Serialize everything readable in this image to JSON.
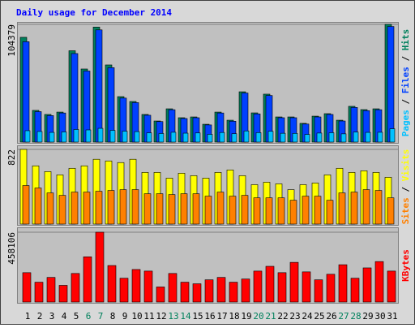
{
  "title": "Daily usage for December 2014",
  "legend_separator": " / ",
  "chart_data": [
    {
      "type": "bar",
      "ylim": [
        0,
        104379
      ],
      "yticks": [
        104379
      ],
      "series": [
        {
          "name": "Pages",
          "color": "#00c0ff",
          "values": [
            10100,
            9400,
            8600,
            9000,
            11200,
            10800,
            12200,
            10400,
            9700,
            9300,
            8200,
            7600,
            8700,
            7900,
            8100,
            6900,
            8500,
            7400,
            9900,
            8400,
            9600,
            7800,
            7700,
            6800,
            8000,
            8300,
            7300,
            8900,
            8600,
            8700,
            11800
          ]
        },
        {
          "name": "Files",
          "color": "#0040ff",
          "values": [
            89000,
            27000,
            23500,
            25800,
            78500,
            63000,
            99500,
            66000,
            39000,
            35000,
            23800,
            18200,
            28700,
            20900,
            21600,
            15200,
            25800,
            18500,
            43500,
            25000,
            41300,
            21600,
            21600,
            16000,
            22300,
            24500,
            18700,
            30700,
            27900,
            28700,
            102500
          ]
        },
        {
          "name": "Hits",
          "color": "#00805c",
          "values": [
            92900,
            28100,
            24500,
            26600,
            81000,
            64800,
            102000,
            68400,
            40300,
            36000,
            24500,
            18700,
            29500,
            21600,
            22300,
            15800,
            26600,
            19400,
            44600,
            25900,
            42500,
            22300,
            22300,
            16600,
            23000,
            25200,
            19400,
            31700,
            28800,
            29500,
            104379
          ]
        }
      ]
    },
    {
      "type": "bar",
      "ylim": [
        0,
        822
      ],
      "yticks": [
        822
      ],
      "series": [
        {
          "name": "Sites",
          "color": "#ff8000",
          "values": [
            424,
            397,
            343,
            316,
            352,
            352,
            361,
            370,
            379,
            379,
            334,
            334,
            325,
            334,
            334,
            307,
            352,
            307,
            316,
            289,
            289,
            289,
            262,
            307,
            307,
            262,
            343,
            352,
            379,
            370,
            289
          ]
        },
        {
          "name": "Visits",
          "color": "#ffff00",
          "values": [
            822,
            641,
            578,
            542,
            614,
            641,
            713,
            695,
            677,
            713,
            569,
            569,
            506,
            560,
            533,
            506,
            569,
            596,
            533,
            434,
            461,
            443,
            379,
            434,
            452,
            542,
            614,
            569,
            587,
            569,
            515
          ]
        }
      ]
    },
    {
      "type": "bar",
      "ylim": [
        0,
        458106
      ],
      "yticks": [
        458106
      ],
      "categories": [
        "1",
        "2",
        "3",
        "4",
        "5",
        "6",
        "7",
        "8",
        "9",
        "10",
        "11",
        "12",
        "13",
        "14",
        "15",
        "16",
        "17",
        "18",
        "19",
        "20",
        "21",
        "22",
        "23",
        "24",
        "25",
        "26",
        "27",
        "28",
        "29",
        "30",
        "31"
      ],
      "category_colors": [
        "#000000",
        "#000000",
        "#000000",
        "#000000",
        "#000000",
        "#00805c",
        "#00805c",
        "#000000",
        "#000000",
        "#000000",
        "#000000",
        "#000000",
        "#00805c",
        "#00805c",
        "#000000",
        "#000000",
        "#000000",
        "#000000",
        "#000000",
        "#00805c",
        "#00805c",
        "#000000",
        "#000000",
        "#000000",
        "#000000",
        "#000000",
        "#00805c",
        "#00805c",
        "#000000",
        "#000000",
        "#000000"
      ],
      "series": [
        {
          "name": "KBytes",
          "color": "#ff0000",
          "values": [
            192600,
            130100,
            161400,
            109300,
            187400,
            296700,
            458106,
            239500,
            156200,
            213400,
            203000,
            98900,
            187400,
            130100,
            119700,
            145800,
            161400,
            130100,
            151000,
            203000,
            234300,
            192600,
            260300,
            197800,
            145800,
            182200,
            244700,
            156200,
            223900,
            265500,
            203000
          ]
        }
      ]
    }
  ]
}
